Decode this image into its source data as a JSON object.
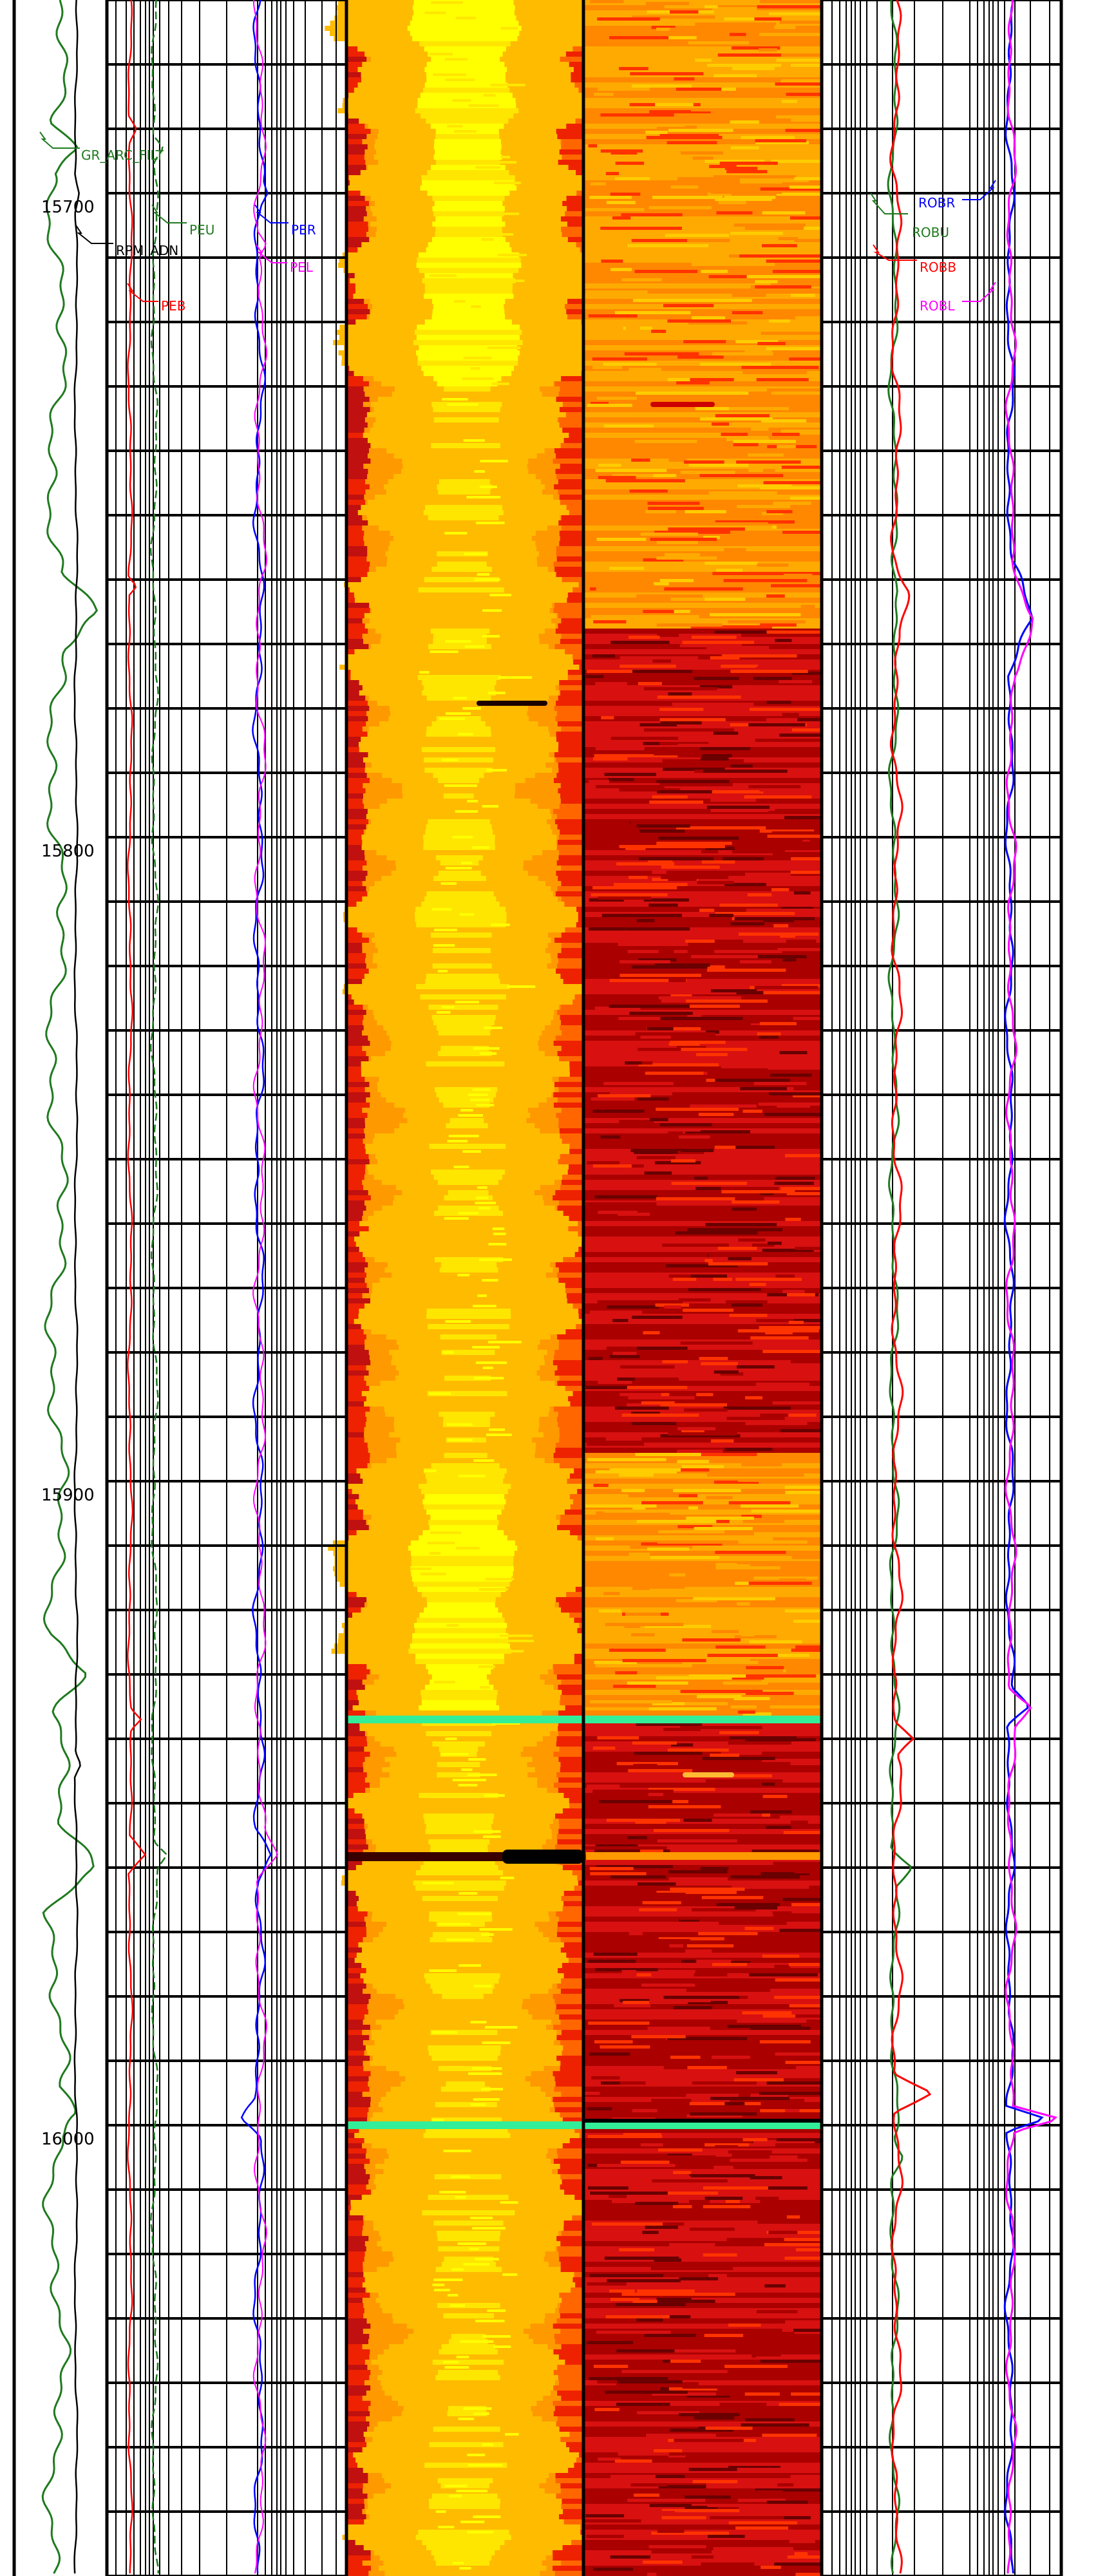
{
  "chart_data": {
    "type": "well-log",
    "depth_axis": {
      "unit": "",
      "range": [
        15670,
        16070
      ],
      "labels": [
        "15700",
        "15800",
        "15900",
        "16000"
      ],
      "major_interval": 10
    },
    "tracks": [
      {
        "id": "track-1",
        "curves": [
          {
            "name": "GR_ARC_FILT",
            "color": "#1f7a1f"
          },
          {
            "name": "RPM_ADN",
            "color": "#000000"
          },
          {
            "name": "PEB",
            "color": "#ff0000"
          }
        ]
      },
      {
        "id": "track-2",
        "curves": [
          {
            "name": "PEU",
            "color": "#1f7a1f"
          },
          {
            "name": "PER",
            "color": "#0000ff"
          },
          {
            "name": "PEL",
            "color": "#ff00ff"
          }
        ]
      },
      {
        "id": "image-track-1",
        "type": "image",
        "palette": [
          "#7f0000",
          "#c01010",
          "#ee2200",
          "#ff6600",
          "#ff9900",
          "#ffbb00",
          "#ffe600",
          "#ffff00"
        ],
        "bands": [
          {
            "from": 15670,
            "to": 15730,
            "level": "bright"
          },
          {
            "from": 15730,
            "to": 15760,
            "level": "medium"
          },
          {
            "from": 15760,
            "to": 15900,
            "level": "medium"
          },
          {
            "from": 15900,
            "to": 15935,
            "level": "bright"
          },
          {
            "from": 15935,
            "to": 16070,
            "level": "medium"
          }
        ]
      },
      {
        "id": "image-track-2",
        "type": "image",
        "palette": [
          "#6a0000",
          "#aa0000",
          "#d81010",
          "#ff3300",
          "#ff8800",
          "#ffaa00",
          "#ffcc00"
        ],
        "bands": [
          {
            "from": 15670,
            "to": 15767,
            "level": "light"
          },
          {
            "from": 15767,
            "to": 15895,
            "level": "dark"
          },
          {
            "from": 15895,
            "to": 15936,
            "level": "light"
          },
          {
            "from": 15936,
            "to": 16070,
            "level": "dark"
          }
        ]
      },
      {
        "id": "track-5",
        "curves": [
          {
            "name": "ROBU",
            "color": "#1f7a1f"
          },
          {
            "name": "ROBB",
            "color": "#ff0000"
          }
        ]
      },
      {
        "id": "track-6",
        "curves": [
          {
            "name": "ROBR",
            "color": "#0000ff"
          },
          {
            "name": "ROBL",
            "color": "#ff00ff"
          }
        ]
      }
    ],
    "markers": [
      {
        "depth": 15937,
        "color": "#33ee99",
        "label": ""
      },
      {
        "depth": 16000,
        "color": "#33ee99",
        "label": ""
      }
    ]
  },
  "text": {
    "curve_gr": "GR_ARC_FILT",
    "curve_rpm": "RPM_ADN",
    "curve_peb": "PEB",
    "curve_peu": "PEU",
    "curve_per": "PER",
    "curve_pel": "PEL",
    "curve_robr": "ROBR",
    "curve_robu": "ROBU",
    "curve_robb": "ROBB",
    "curve_robl": "ROBL",
    "depth_15700": "15700",
    "depth_15800": "15800",
    "depth_15900": "15900",
    "depth_16000": "16000"
  }
}
